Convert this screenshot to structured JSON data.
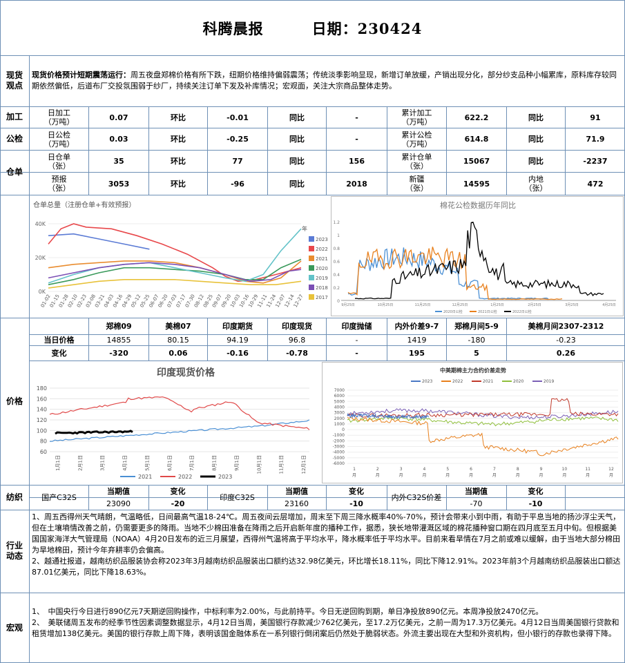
{
  "header": {
    "title": "科腾晨报",
    "date_label": "日期：230424"
  },
  "spot": {
    "label": "现货\n观点",
    "lead": "现货价格预计短期震荡运行：",
    "body": "周五夜盘郑棉价格有所下跌，纽期价格维持偏弱震荡；传统淡季影响显现，新增订单放缓，产销出现分化，部分纱支品种小幅累库，原料库存较同期依然偏低，后道布厂交投氛围弱于纱厂，持续关注订单下发及补库情况；宏观面，关注大宗商品整体走势。"
  },
  "stats": {
    "side_process": "加工",
    "side_inspect": "公检",
    "side_warrant": "仓单",
    "rows": [
      [
        "日加工\n（万吨）",
        "0.07",
        "环比",
        "-0.01",
        "同比",
        "-",
        "累计加工\n（万吨）",
        "622.2",
        "同比",
        "91"
      ],
      [
        "日公检\n（万吨）",
        "0.03",
        "环比",
        "-0.25",
        "同比",
        "-",
        "累计公检\n（万吨）",
        "614.8",
        "同比",
        "71.9"
      ],
      [
        "日仓单\n（张）",
        "35",
        "环比",
        "77",
        "同比",
        "156",
        "累计仓单\n（张）",
        "15067",
        "同比",
        "-2237"
      ],
      [
        "预报\n（张）",
        "3053",
        "环比",
        "-96",
        "同比",
        "2018",
        "新疆\n（张）",
        "14595",
        "内地\n（张）",
        "472"
      ]
    ]
  },
  "chart_warrant": {
    "title": "仓单总量（注册仓单+有效预报）",
    "legend_title": "年",
    "yticks": [
      "40K",
      "20K",
      "0K"
    ],
    "xticks": [
      "01-02",
      "01-15",
      "01-28",
      "02-10",
      "02-23",
      "03-08",
      "03-21",
      "04-03",
      "04-16",
      "04-29",
      "05-12",
      "05-25",
      "06-07",
      "06-20",
      "07-03",
      "07-17",
      "07-30",
      "08-12",
      "08-25",
      "09-07",
      "09-20",
      "10-03",
      "10-16",
      "10-29",
      "11-11",
      "11-24",
      "12-07",
      "12-14",
      "12-27"
    ],
    "series": [
      {
        "name": "2023",
        "color": "#5b7bd5"
      },
      {
        "name": "2022",
        "color": "#e8474a"
      },
      {
        "name": "2021",
        "color": "#e98c2f"
      },
      {
        "name": "2020",
        "color": "#3a9a5b"
      },
      {
        "name": "2019",
        "color": "#62c2c8"
      },
      {
        "name": "2018",
        "color": "#7b4fb5"
      },
      {
        "name": "2017",
        "color": "#e8c23a"
      }
    ]
  },
  "chart_inspect": {
    "title": "棉花公检数据历年同比",
    "xticks": [
      "9月25日",
      "10月25日",
      "11月25日",
      "12月25日",
      "1月25日",
      "2月25日",
      "3月25日",
      "4月25日"
    ],
    "yticks": [
      "1.2",
      "1",
      "0.8",
      "0.6",
      "0.4",
      "0.2",
      "0"
    ],
    "legend": [
      "2020日公检",
      "2021日公检",
      "2022日公检"
    ],
    "colors": [
      "#4a8fd4",
      "#e8801d",
      "#000000"
    ]
  },
  "price": {
    "side": "价格",
    "headers": [
      "郑棉09",
      "美棉07",
      "印度期货",
      "印度现货",
      "印度抛储",
      "内外价差9-7",
      "郑棉月间5-9",
      "美棉月间2307-2312"
    ],
    "row1_label": "当日价格",
    "row1": [
      "14855",
      "80.15",
      "94.19",
      "96.8",
      "-",
      "1419",
      "-180",
      "-0.23"
    ],
    "row2_label": "变化",
    "row2": [
      "-320",
      "0.06",
      "-0.16",
      "-0.78",
      "-",
      "195",
      "5",
      "0.26"
    ]
  },
  "chart_india": {
    "title": "印度现货价格",
    "yticks": [
      "180",
      "160",
      "140",
      "120",
      "100",
      "80",
      "60"
    ],
    "xticks": [
      "1月1日",
      "2月1日",
      "3月1日",
      "4月1日",
      "5月1日",
      "6月1日",
      "7月1日",
      "8月1日",
      "9月1日",
      "10月1日",
      "11月1日",
      "12月1日"
    ],
    "legend": [
      "2021",
      "2022",
      "2023"
    ],
    "colors": [
      "#4a8fd4",
      "#e04848",
      "#000000"
    ]
  },
  "chart_spread": {
    "title": "中美期棉主力合约价差走势",
    "legend": [
      "2023",
      "2022",
      "2021",
      "2020",
      "2019"
    ],
    "colors": [
      "#4a78c4",
      "#e8801d",
      "#c0392b",
      "#8fbf3b",
      "#7a5fb5"
    ],
    "yticks": [
      "7000",
      "6000",
      "5000",
      "4000",
      "3000",
      "2000",
      "1000",
      "0",
      "-1000",
      "-2000",
      "-3000",
      "-4000",
      "-5000",
      "-6000"
    ],
    "xticks": [
      "1",
      "2",
      "3",
      "4",
      "5",
      "6",
      "7",
      "8",
      "9",
      "10",
      "11",
      "12"
    ],
    "xunit": "月"
  },
  "yarn": {
    "side": "纺织",
    "c32": "国产C32S",
    "cur": "当期值",
    "chg": "变化",
    "c32_val": "23090",
    "c32_chg": "-20",
    "i32": "印度C32S",
    "i32_val": "23160",
    "i32_chg": "-10",
    "spread": "内外C32S价差",
    "spread_val": "-70",
    "spread_chg": "-10"
  },
  "industry": {
    "side": "行业\n动态",
    "p1": "1、周五西得州天气晴朗，气温略低，日间最高气温18-24℃。周五夜间云层增加，周末至下周三降水概率40%-70%，预计会带来小到中雨，有助于平息当地的扬沙浮尘天气，但在土壤墒情改善之前，仍需要更多的降雨。当地不少棉田准备在降雨之后开启新年度的播种工作，据悉，狭长地带灌溉区域的棉花播种窗口期在四月底至五月中旬。但根据美国国家海洋大气管理局（NOAA）4月20日发布的近三月展望，西得州气温将高于平均水平，降水概率低于平均水平。目前来看旱情在7月之前或难以缓解，由于当地大部分棉田为旱地棉田，预计今年弃耕率仍会偏高。",
    "p2": "2、越通社报道，越南纺织品服装协会称2023年3月越南纺织品服装出口额约达32.98亿美元，环比增长18.11%，同比下降12.91%。2023年前3个月越南纺织品服装出口额达87.01亿美元，同比下降18.63%。"
  },
  "macro": {
    "side": "宏观",
    "p1": "1、　中国央行今日进行890亿元7天期逆回购操作，中标利率为2.00%，与此前持平。今日无逆回购到期，单日净投放890亿元。本周净投放2470亿元。",
    "p2": "2、　美联储周五发布的经季节性因素调整数据显示，4月12日当周，美国银行存款减少762亿美元，至17.2万亿美元，之前一周为17.3万亿美元。4月12日当周美国银行贷款和租赁增加138亿美元。美国的银行存款上周下降，表明该国金融体系在一系列银行倒闭案后仍然处于脆弱状态。外流主要出现在大型和外资机构，但小银行的存款也录得下降。"
  }
}
